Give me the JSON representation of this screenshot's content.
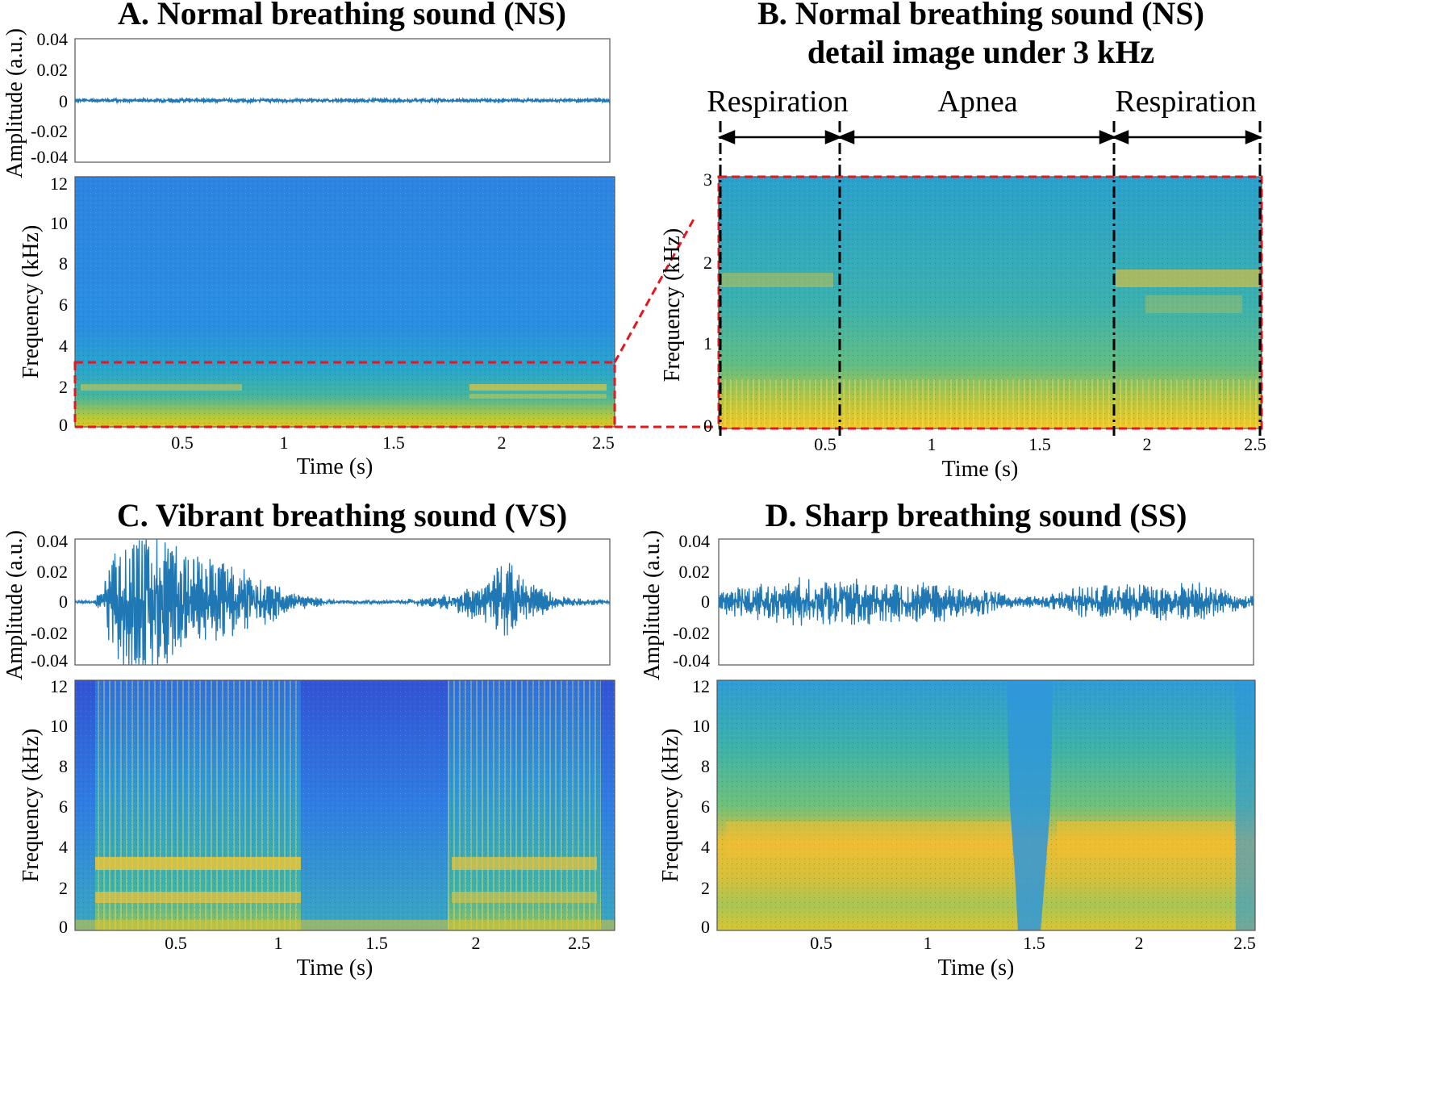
{
  "figure": {
    "panels": {
      "A": {
        "title": "A. Normal breathing sound (NS)"
      },
      "B": {
        "title_line1": "B. Normal breathing sound (NS)",
        "title_line2": "detail image under 3 kHz"
      },
      "C": {
        "title": "C. Vibrant breathing sound (VS)"
      },
      "D": {
        "title": "D. Sharp breathing sound (SS)"
      }
    },
    "segment_labels": [
      "Respiration",
      "Apnea",
      "Respiration"
    ],
    "colors": {
      "waveform": "#1f77b4",
      "zoom_box": "#e3171d",
      "segment_lines": "#000000"
    }
  },
  "chart_data": [
    {
      "id": "A-waveform",
      "type": "line",
      "title": "A. Normal breathing sound (NS)",
      "xlabel": "",
      "ylabel": "Amplitude (a.u.)",
      "xlim": [
        0,
        2.5
      ],
      "ylim": [
        -0.04,
        0.04
      ],
      "yticks": [
        "0.04",
        "0.02",
        "0",
        "-0.02",
        "-0.04"
      ],
      "envelope": {
        "t": [
          0,
          2.5
        ],
        "amplitude": [
          0.001,
          0.001
        ]
      }
    },
    {
      "id": "A-spectrogram",
      "type": "heatmap",
      "xlabel": "Time (s)",
      "ylabel": "Frequency (kHz)",
      "xlim": [
        0,
        2.5
      ],
      "ylim": [
        0,
        12
      ],
      "xticks": [
        "0.5",
        "1",
        "1.5",
        "2",
        "2.5"
      ],
      "yticks": [
        "12",
        "10",
        "8",
        "6",
        "4",
        "2",
        "0"
      ],
      "zoom_region": {
        "t": [
          0,
          2.5
        ],
        "f": [
          0,
          3
        ]
      }
    },
    {
      "id": "B-spectrogram",
      "type": "heatmap",
      "title": "B. Normal breathing sound (NS) detail image under 3 kHz",
      "xlabel": "Time (s)",
      "ylabel": "Frequency (kHz)",
      "xlim": [
        0,
        2.5
      ],
      "ylim": [
        0,
        3
      ],
      "xticks": [
        "0.5",
        "1",
        "1.5",
        "2",
        "2.5"
      ],
      "yticks": [
        "3",
        "2",
        "1",
        "0"
      ],
      "segments": [
        {
          "label": "Respiration",
          "start": 0,
          "end": 0.55
        },
        {
          "label": "Apnea",
          "start": 0.55,
          "end": 1.82
        },
        {
          "label": "Respiration",
          "start": 1.82,
          "end": 2.5
        }
      ]
    },
    {
      "id": "C-waveform",
      "type": "line",
      "title": "C. Vibrant breathing sound (VS)",
      "xlabel": "",
      "ylabel": "Amplitude (a.u.)",
      "xlim": [
        0,
        2.65
      ],
      "ylim": [
        -0.04,
        0.04
      ],
      "yticks": [
        "0.04",
        "0.02",
        "0",
        "-0.02",
        "-0.04"
      ],
      "envelope": {
        "t": [
          0,
          0.1,
          0.17,
          0.25,
          0.4,
          0.55,
          0.75,
          0.95,
          1.1,
          1.3,
          1.6,
          1.85,
          2.0,
          2.15,
          2.25,
          2.4,
          2.65
        ],
        "amplitude": [
          0.001,
          0.001,
          0.02,
          0.038,
          0.04,
          0.03,
          0.02,
          0.012,
          0.004,
          0.001,
          0.001,
          0.004,
          0.01,
          0.022,
          0.01,
          0.003,
          0.001
        ]
      }
    },
    {
      "id": "C-spectrogram",
      "type": "heatmap",
      "xlabel": "Time (s)",
      "ylabel": "Frequency (kHz)",
      "xlim": [
        0,
        2.65
      ],
      "ylim": [
        0,
        12
      ],
      "xticks": [
        "0.5",
        "1",
        "1.5",
        "2",
        "2.5"
      ],
      "yticks": [
        "12",
        "10",
        "8",
        "6",
        "4",
        "2",
        "0"
      ]
    },
    {
      "id": "D-waveform",
      "type": "line",
      "title": "D. Sharp breathing sound (SS)",
      "xlabel": "",
      "ylabel": "Amplitude (a.u.)",
      "xlim": [
        0,
        2.55
      ],
      "ylim": [
        -0.04,
        0.04
      ],
      "yticks": [
        "0.04",
        "0.02",
        "0",
        "-0.02",
        "-0.04"
      ],
      "envelope": {
        "t": [
          0,
          0.1,
          0.3,
          0.5,
          0.8,
          1.1,
          1.3,
          1.4,
          1.55,
          1.7,
          2.0,
          2.3,
          2.45,
          2.55
        ],
        "amplitude": [
          0.005,
          0.008,
          0.012,
          0.013,
          0.011,
          0.01,
          0.006,
          0.003,
          0.003,
          0.008,
          0.01,
          0.01,
          0.005,
          0.003
        ]
      }
    },
    {
      "id": "D-spectrogram",
      "type": "heatmap",
      "xlabel": "Time (s)",
      "ylabel": "Frequency (kHz)",
      "xlim": [
        0,
        2.55
      ],
      "ylim": [
        0,
        12
      ],
      "xticks": [
        "0.5",
        "1",
        "1.5",
        "2",
        "2.5"
      ],
      "yticks": [
        "12",
        "10",
        "8",
        "6",
        "4",
        "2",
        "0"
      ]
    }
  ]
}
